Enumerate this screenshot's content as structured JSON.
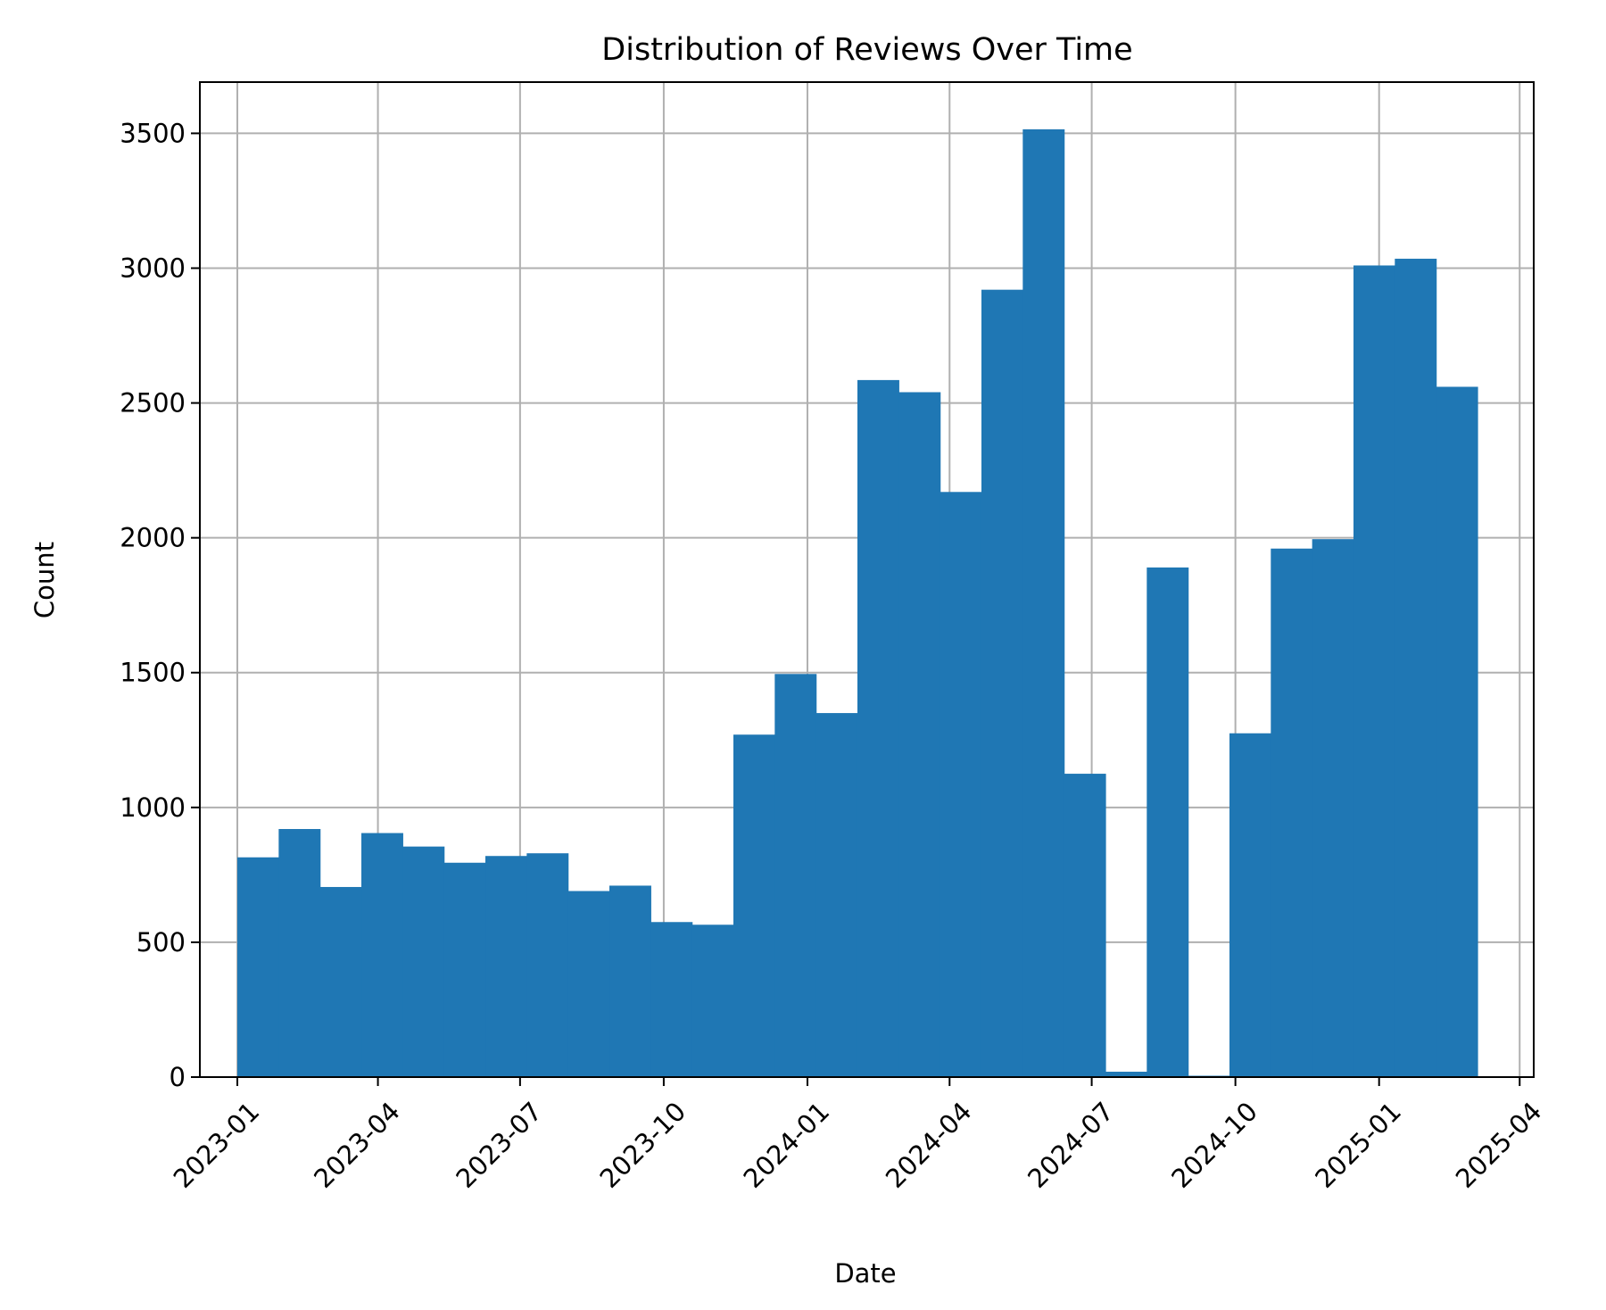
{
  "chart_data": {
    "type": "bar",
    "title": "Distribution of Reviews Over Time",
    "xlabel": "Date",
    "ylabel": "Count",
    "x_ticks": [
      "2023-01",
      "2023-04",
      "2023-07",
      "2023-10",
      "2024-01",
      "2024-04",
      "2024-07",
      "2024-10",
      "2025-01",
      "2025-04"
    ],
    "y_ticks": [
      0,
      500,
      1000,
      1500,
      2000,
      2500,
      3000,
      3500
    ],
    "xlim": [
      "2022-12-08",
      "2025-04-10"
    ],
    "ylim": [
      0,
      3690
    ],
    "bin_range": [
      "2023-01-01",
      "2025-03-05"
    ],
    "values": [
      815,
      920,
      705,
      905,
      855,
      795,
      820,
      830,
      690,
      710,
      575,
      565,
      1270,
      1495,
      1350,
      2585,
      2540,
      2170,
      2920,
      3515,
      1125,
      20,
      1890,
      5,
      1275,
      1960,
      1995,
      3010,
      3035,
      2560
    ],
    "grid": true,
    "colors": {
      "bar": "#1f77b4",
      "grid": "#b0b0b0",
      "axis": "#000000"
    }
  }
}
